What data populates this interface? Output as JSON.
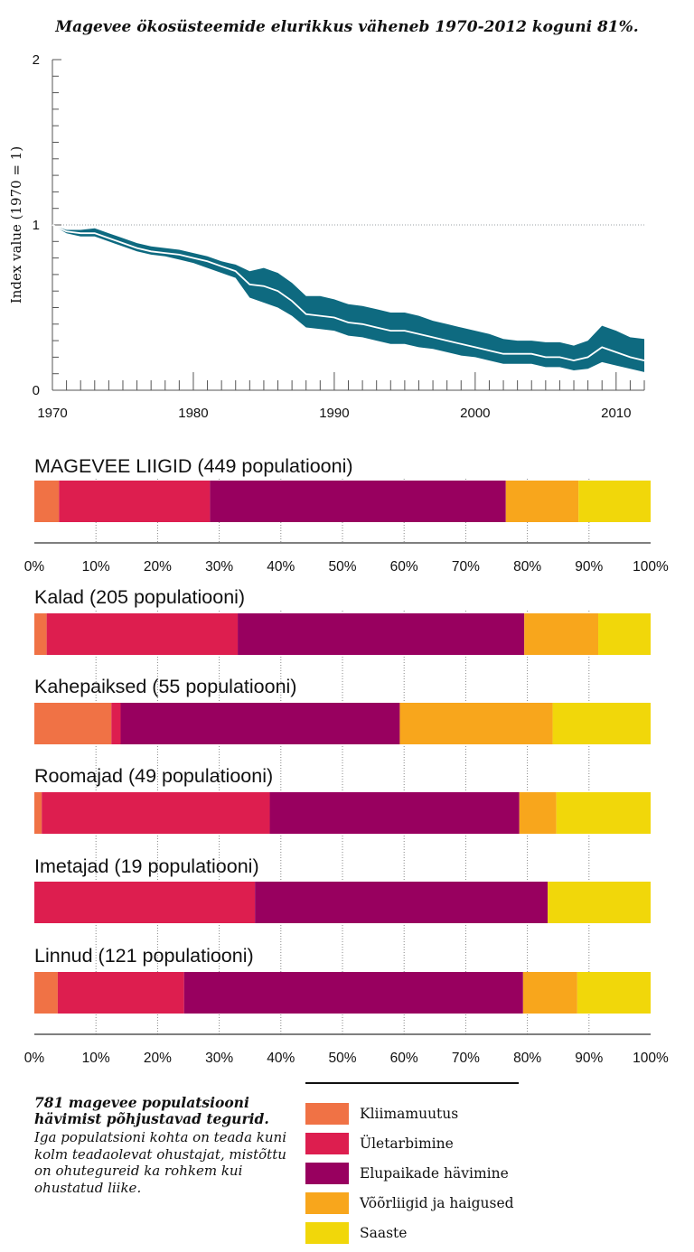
{
  "title": "Magevee ökosüsteemide elurikkus väheneb 1970-2012 koguni 81%.",
  "colors": {
    "line_band": "#0e6a80",
    "line_center": "#ffffff",
    "reference_line": "#9aa0a6",
    "axis": "#555555",
    "gridline": "#888888",
    "Kliimamuutus": "#f07245",
    "Ületarbimine": "#dd1e4f",
    "Elupaikade hävimine": "#98005f",
    "Võõrliigid ja haigused": "#f8a61c",
    "Saaste": "#f1d70a"
  },
  "chart_data": [
    {
      "type": "area",
      "title": "Magevee ökosüsteemide elurikkus väheneb 1970-2012 koguni 81%.",
      "ylabel": "Index value (1970 = 1)",
      "xlabel": "",
      "xlim": [
        1970,
        2012
      ],
      "ylim": [
        0,
        2
      ],
      "x_ticks": [
        1970,
        1980,
        1990,
        2000,
        2010
      ],
      "y_ticks": [
        0,
        1,
        2
      ],
      "reference_line": 1,
      "series": [
        {
          "name": "Index",
          "x": [
            1970,
            1971,
            1972,
            1973,
            1974,
            1975,
            1976,
            1977,
            1978,
            1979,
            1980,
            1981,
            1982,
            1983,
            1984,
            1985,
            1986,
            1987,
            1988,
            1989,
            1990,
            1991,
            1992,
            1993,
            1994,
            1995,
            1996,
            1997,
            1998,
            1999,
            2000,
            2001,
            2002,
            2003,
            2004,
            2005,
            2006,
            2007,
            2008,
            2009,
            2010,
            2011,
            2012
          ],
          "values": [
            1.0,
            0.96,
            0.95,
            0.95,
            0.92,
            0.89,
            0.86,
            0.84,
            0.83,
            0.82,
            0.8,
            0.78,
            0.75,
            0.72,
            0.64,
            0.63,
            0.6,
            0.54,
            0.46,
            0.45,
            0.44,
            0.41,
            0.4,
            0.38,
            0.36,
            0.36,
            0.34,
            0.32,
            0.3,
            0.28,
            0.26,
            0.24,
            0.22,
            0.22,
            0.22,
            0.2,
            0.2,
            0.18,
            0.2,
            0.26,
            0.23,
            0.2,
            0.18
          ],
          "upper": [
            1.0,
            0.97,
            0.97,
            0.98,
            0.95,
            0.92,
            0.89,
            0.87,
            0.86,
            0.85,
            0.83,
            0.81,
            0.78,
            0.76,
            0.72,
            0.74,
            0.71,
            0.65,
            0.57,
            0.57,
            0.55,
            0.52,
            0.51,
            0.49,
            0.47,
            0.47,
            0.45,
            0.42,
            0.4,
            0.38,
            0.36,
            0.34,
            0.31,
            0.3,
            0.3,
            0.29,
            0.29,
            0.27,
            0.3,
            0.39,
            0.36,
            0.32,
            0.31
          ],
          "lower": [
            1.0,
            0.95,
            0.93,
            0.93,
            0.9,
            0.87,
            0.84,
            0.82,
            0.81,
            0.79,
            0.77,
            0.74,
            0.71,
            0.68,
            0.56,
            0.53,
            0.5,
            0.45,
            0.38,
            0.37,
            0.36,
            0.33,
            0.32,
            0.3,
            0.28,
            0.28,
            0.26,
            0.25,
            0.23,
            0.21,
            0.2,
            0.18,
            0.16,
            0.16,
            0.16,
            0.14,
            0.14,
            0.12,
            0.13,
            0.17,
            0.15,
            0.13,
            0.11
          ]
        }
      ]
    },
    {
      "type": "bar",
      "orientation": "horizontal",
      "stacked": true,
      "units": "%",
      "xlim": [
        0,
        100
      ],
      "x_ticks": [
        "0%",
        "10%",
        "20%",
        "30%",
        "40%",
        "50%",
        "60%",
        "70%",
        "80%",
        "90%",
        "100%"
      ],
      "legend_position": "bottom-right",
      "categories": [
        "MAGEVEE LIIGID (449 populatiooni)",
        "Kalad (205 populatiooni)",
        "Kahepaiksed (55 populatiooni)",
        "Roomajad (49 populatiooni)",
        "Imetajad (19 populatiooni)",
        "Linnud (121 populatiooni)"
      ],
      "series": [
        {
          "name": "Kliimamuutus",
          "values": [
            4,
            2,
            12.5,
            1.2,
            0,
            3.8
          ]
        },
        {
          "name": "Ületarbimine",
          "values": [
            24.5,
            31,
            1.5,
            37,
            35.8,
            20.5
          ]
        },
        {
          "name": "Elupaikade hävimine",
          "values": [
            48,
            46.5,
            45.3,
            40.5,
            47.5,
            55
          ]
        },
        {
          "name": "Võõrliigid ja haigused",
          "values": [
            11.8,
            12,
            24.8,
            6,
            0,
            8.8
          ]
        },
        {
          "name": "Saaste",
          "values": [
            11.7,
            8.5,
            15.9,
            15.3,
            16.7,
            11.9
          ]
        }
      ]
    }
  ],
  "summary": {
    "heading": "781 magevee populatsiooni hävimist põhjustavad tegurid.",
    "body": "Iga populatsioni kohta on teada kuni kolm teadaolevat ohustajat, mistõttu on ohutegureid ka rohkem kui ohustatud liike."
  },
  "legend": {
    "items": [
      {
        "label": "Kliimamuutus",
        "icon": "swatch-orange"
      },
      {
        "label": "Ületarbimine",
        "icon": "swatch-red"
      },
      {
        "label": "Elupaikade hävimine",
        "icon": "swatch-purple"
      },
      {
        "label": "Võõrliigid ja haigused",
        "icon": "swatch-amber"
      },
      {
        "label": "Saaste",
        "icon": "swatch-yellow"
      }
    ]
  }
}
